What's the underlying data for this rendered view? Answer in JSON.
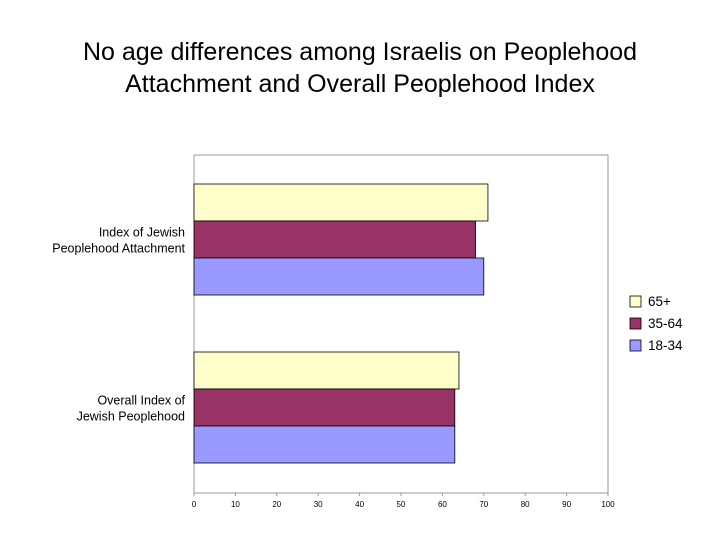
{
  "title_line1": "No age differences among Israelis on Peoplehood",
  "title_line2": "Attachment and Overall Peoplehood Index",
  "chart_data": {
    "type": "bar",
    "orientation": "horizontal",
    "categories": [
      {
        "line1": "Index of Jewish",
        "line2": "Peoplehood Attachment"
      },
      {
        "line1": "Overall Index of",
        "line2": "Jewish Peoplehood"
      }
    ],
    "series": [
      {
        "name": "65+",
        "color": "#ffffcc",
        "values": [
          71,
          64
        ]
      },
      {
        "name": "35-64",
        "color": "#993366",
        "values": [
          68,
          63
        ]
      },
      {
        "name": "18-34",
        "color": "#9999ff",
        "values": [
          70,
          63
        ]
      }
    ],
    "xlim": [
      0,
      100
    ],
    "xticks": [
      "0",
      "10",
      "20",
      "30",
      "40",
      "50",
      "60",
      "70",
      "80",
      "90",
      "100"
    ],
    "grid": false,
    "legend_position": "right"
  }
}
